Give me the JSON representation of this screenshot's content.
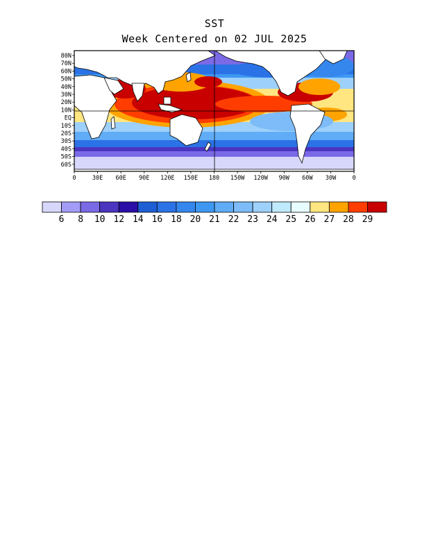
{
  "title": "SST",
  "subtitle": "Week Centered on 02 JUL 2025",
  "lat_labels": [
    "80N",
    "70N",
    "60N",
    "50N",
    "40N",
    "30N",
    "20N",
    "10N",
    "EQ",
    "10S",
    "20S",
    "30S",
    "40S",
    "50S",
    "60S"
  ],
  "lon_labels": [
    "0",
    "30E",
    "60E",
    "90E",
    "120E",
    "150E",
    "180",
    "150W",
    "120W",
    "90W",
    "60W",
    "30W",
    "0"
  ],
  "colorbar": {
    "colors": [
      "#d7d7fb",
      "#a39cf6",
      "#7a6ae6",
      "#4b35c0",
      "#2b0fa6",
      "#1d5ed4",
      "#2b72e6",
      "#3587ee",
      "#3e98f2",
      "#60acf6",
      "#7dbcf8",
      "#9dd0fb",
      "#bfeafe",
      "#e8fdff",
      "#ffe680",
      "#ffa300",
      "#ff3d00",
      "#c80000"
    ],
    "labels": [
      "6",
      "8",
      "10",
      "12",
      "14",
      "16",
      "18",
      "20",
      "21",
      "22",
      "23",
      "24",
      "25",
      "26",
      "27",
      "28",
      "29"
    ]
  },
  "chart_data": {
    "type": "heatmap",
    "variable": "SST",
    "lat_range": [
      -70,
      85
    ],
    "lon_range": [
      0,
      360
    ],
    "levels": [
      6,
      8,
      10,
      12,
      14,
      16,
      18,
      20,
      21,
      22,
      23,
      24,
      25,
      26,
      27,
      28,
      29
    ]
  }
}
